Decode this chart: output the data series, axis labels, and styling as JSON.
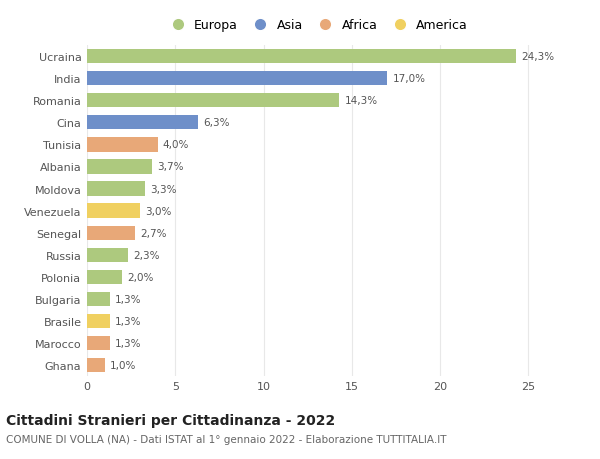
{
  "countries": [
    "Ucraina",
    "India",
    "Romania",
    "Cina",
    "Tunisia",
    "Albania",
    "Moldova",
    "Venezuela",
    "Senegal",
    "Russia",
    "Polonia",
    "Bulgaria",
    "Brasile",
    "Marocco",
    "Ghana"
  ],
  "values": [
    24.3,
    17.0,
    14.3,
    6.3,
    4.0,
    3.7,
    3.3,
    3.0,
    2.7,
    2.3,
    2.0,
    1.3,
    1.3,
    1.3,
    1.0
  ],
  "labels": [
    "24,3%",
    "17,0%",
    "14,3%",
    "6,3%",
    "4,0%",
    "3,7%",
    "3,3%",
    "3,0%",
    "2,7%",
    "2,3%",
    "2,0%",
    "1,3%",
    "1,3%",
    "1,3%",
    "1,0%"
  ],
  "continents": [
    "Europa",
    "Asia",
    "Europa",
    "Asia",
    "Africa",
    "Europa",
    "Europa",
    "America",
    "Africa",
    "Europa",
    "Europa",
    "Europa",
    "America",
    "Africa",
    "Africa"
  ],
  "continent_colors": {
    "Europa": "#adc97e",
    "Asia": "#6e8fc9",
    "Africa": "#e8a878",
    "America": "#f0d060"
  },
  "legend_order": [
    "Europa",
    "Asia",
    "Africa",
    "America"
  ],
  "title": "Cittadini Stranieri per Cittadinanza - 2022",
  "subtitle": "COMUNE DI VOLLA (NA) - Dati ISTAT al 1° gennaio 2022 - Elaborazione TUTTITALIA.IT",
  "xlim": [
    0,
    26
  ],
  "xticks": [
    0,
    5,
    10,
    15,
    20,
    25
  ],
  "background_color": "#ffffff",
  "grid_color": "#e8e8e8",
  "bar_height": 0.65
}
